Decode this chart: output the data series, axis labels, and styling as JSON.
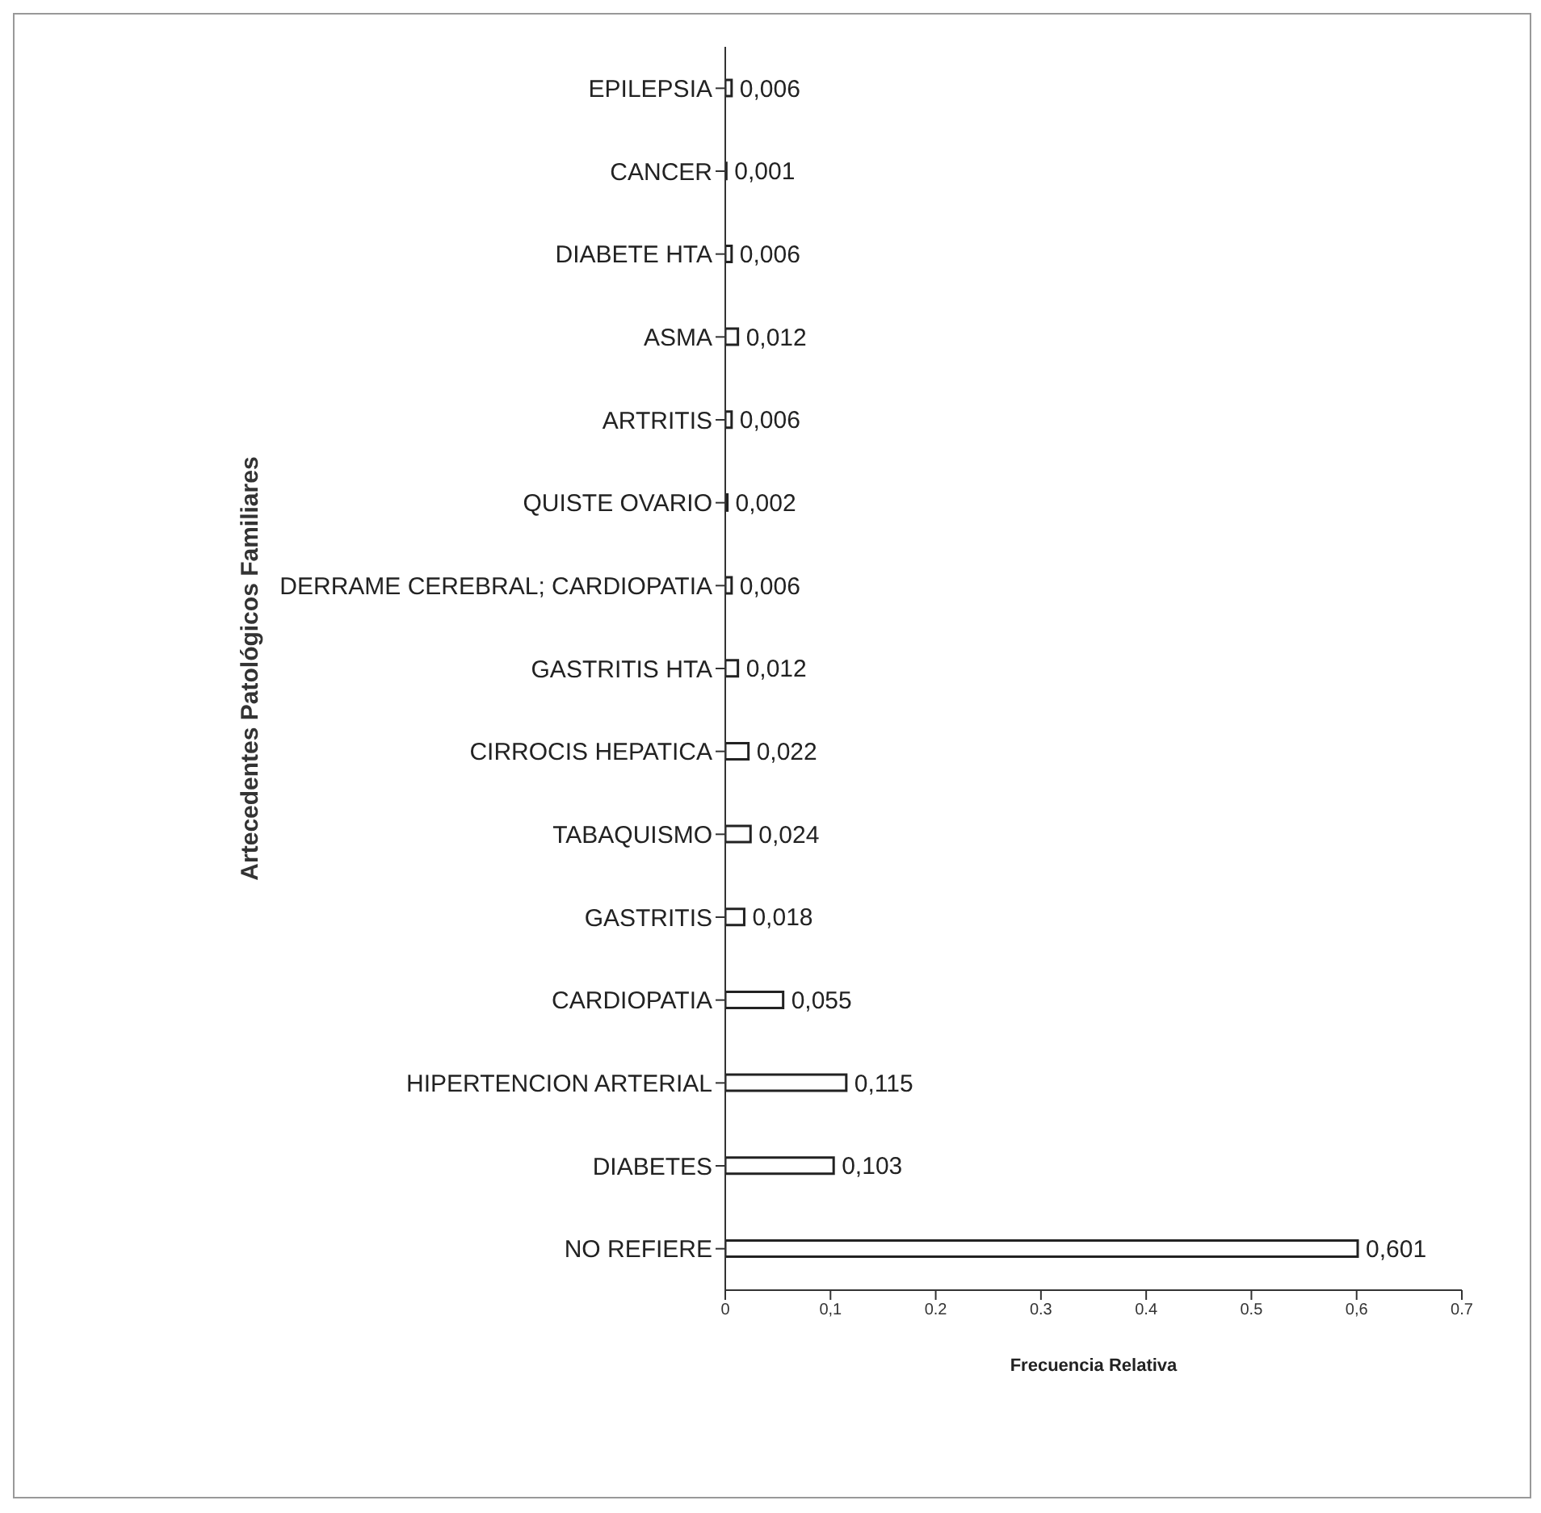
{
  "chart_data": {
    "type": "bar",
    "orientation": "horizontal",
    "xlabel": "Frecuencia Relativa",
    "ylabel": "Artecedentes  Patológicos Familiares",
    "categories": [
      "EPILEPSIA",
      "CANCER",
      "DIABETE HTA",
      "ASMA",
      "ARTRITIS",
      "QUISTE  OVARIO",
      "DERRAME CEREBRAL; CARDIOPATIA",
      "GASTRITIS  HTA",
      "CIRROCIS HEPATICA",
      "TABAQUISMO",
      "GASTRITIS",
      "CARDIOPATIA",
      "HIPERTENCION ARTERIAL",
      "DIABETES",
      "NO REFIERE"
    ],
    "values": [
      0.006,
      0.001,
      0.006,
      0.012,
      0.006,
      0.002,
      0.006,
      0.012,
      0.022,
      0.024,
      0.018,
      0.055,
      0.115,
      0.103,
      0.601
    ],
    "value_labels": [
      "0,006",
      "0,001",
      "0,006",
      "0,012",
      "0,006",
      "0,002",
      "0,006",
      "0,012",
      "0,022",
      "0,024",
      "0,018",
      "0,055",
      "0,115",
      "0,103",
      "0,601"
    ],
    "color": "#ffffff",
    "xlim": [
      0,
      0.7
    ],
    "xticks": [
      0,
      {
        "value": 0.1,
        "label": "0,1"
      },
      0.2,
      0.3,
      0.4,
      0.5,
      {
        "value": 0.6,
        "label": "0,6"
      },
      0.7
    ],
    "grid": false,
    "legend": false
  }
}
